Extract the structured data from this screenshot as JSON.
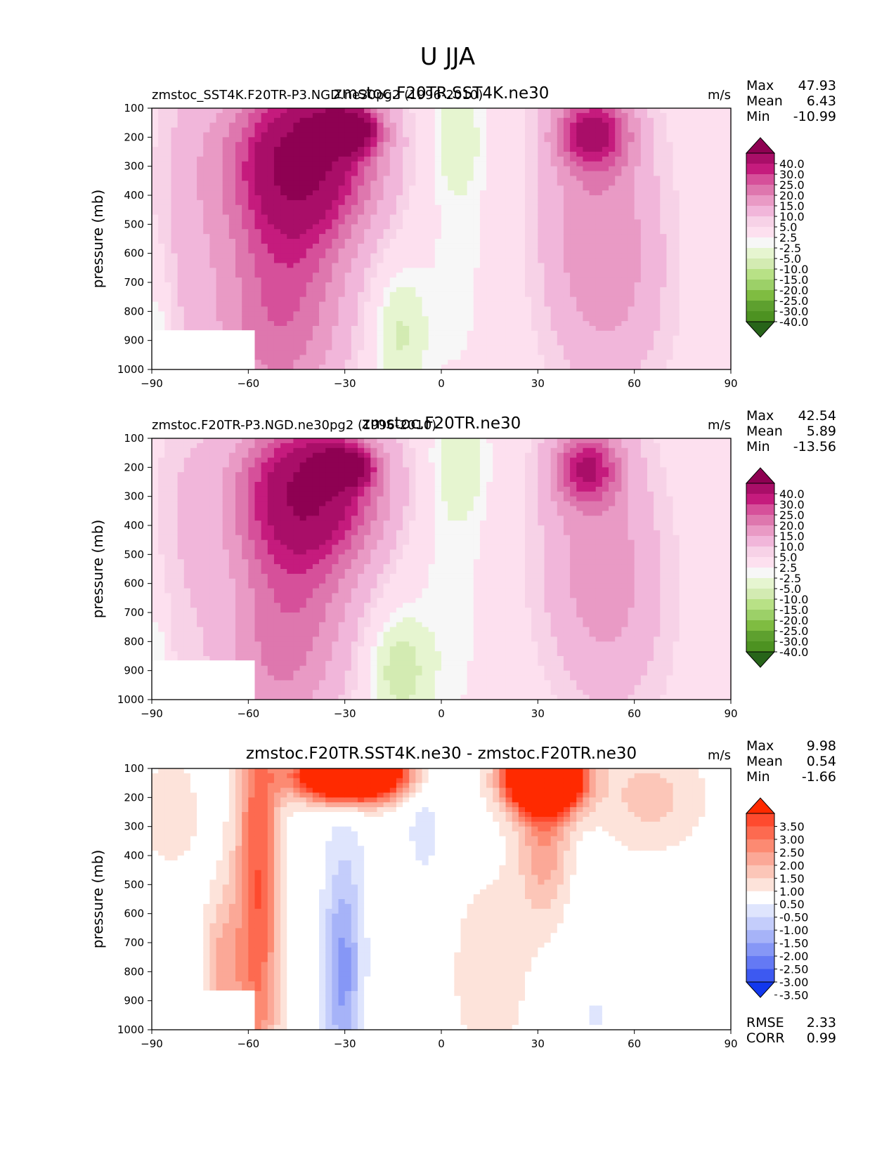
{
  "figure_title": "U JJA",
  "chart_data": [
    {
      "type": "contour",
      "title": "zmstoc.F20TR.SST4K.ne30",
      "left_label": "zmstoc_SST4K.F20TR-P3.NGD.ne30pg2 (1996-2010)",
      "units": "m/s",
      "xlabel": "",
      "ylabel": "pressure (mb)",
      "xlim": [
        -90,
        90
      ],
      "ylim": [
        1000,
        100
      ],
      "xticks": [
        "−90",
        "−60",
        "−30",
        "0",
        "30",
        "60",
        "90"
      ],
      "yticks": [
        "100",
        "200",
        "300",
        "400",
        "500",
        "600",
        "700",
        "800",
        "900",
        "1000"
      ],
      "stats": [
        {
          "label": "Max",
          "value": "47.93"
        },
        {
          "label": "Mean",
          "value": "6.43"
        },
        {
          "label": "Min",
          "value": "-10.99"
        }
      ],
      "colorbar_labels": [
        "40.0",
        "30.0",
        "25.0",
        "20.0",
        "15.0",
        "10.0",
        "5.0",
        "2.5",
        "-2.5",
        "-5.0",
        "-10.0",
        "-15.0",
        "-20.0",
        "-25.0",
        "-30.0",
        "-40.0"
      ],
      "colorbar_colors": [
        "#8e0152",
        "#a90e68",
        "#c51b7d",
        "#d6509a",
        "#de77ae",
        "#e99ac5",
        "#f1b6da",
        "#f7d2e7",
        "#fde0ef",
        "#f7f7f7",
        "#e6f5d0",
        "#d3ebb2",
        "#b8e186",
        "#9cd068",
        "#7fbc41",
        "#5ea02f",
        "#4d9221",
        "#276419"
      ],
      "features": [
        {
          "lat": -30,
          "p": 175,
          "value": 47.9,
          "lat_width": 9,
          "p_width": 70
        },
        {
          "lat": -42,
          "p": 250,
          "value": 36,
          "lat_width": 22,
          "p_width": 260
        },
        {
          "lat": -48,
          "p": 550,
          "value": 19,
          "lat_width": 20,
          "p_width": 380
        },
        {
          "lat": -52,
          "p": 950,
          "value": 11,
          "lat_width": 20,
          "p_width": 300
        },
        {
          "lat": -78,
          "p": 400,
          "value": 5,
          "lat_width": 12,
          "p_width": 600
        },
        {
          "lat": 47,
          "p": 185,
          "value": 27,
          "lat_width": 11,
          "p_width": 120
        },
        {
          "lat": 48,
          "p": 450,
          "value": 12,
          "lat_width": 18,
          "p_width": 500
        },
        {
          "lat": 55,
          "p": 750,
          "value": 5,
          "lat_width": 18,
          "p_width": 400
        },
        {
          "lat": 5,
          "p": 200,
          "value": -7,
          "lat_width": 7,
          "p_width": 180
        },
        {
          "lat": -13,
          "p": 880,
          "value": -11,
          "lat_width": 8,
          "p_width": 200
        },
        {
          "lat": 5,
          "p": 550,
          "value": -3.5,
          "lat_width": 12,
          "p_width": 700
        },
        {
          "lat": -88,
          "p": 850,
          "value": -6,
          "lat_width": 3,
          "p_width": 200
        }
      ]
    },
    {
      "type": "contour",
      "title": "zmstoc.F20TR.ne30",
      "left_label": "zmstoc.F20TR-P3.NGD.ne30pg2 (1996-2010)",
      "units": "m/s",
      "xlabel": "",
      "ylabel": "pressure (mb)",
      "xlim": [
        -90,
        90
      ],
      "ylim": [
        1000,
        100
      ],
      "xticks": [
        "−90",
        "−60",
        "−30",
        "0",
        "30",
        "60",
        "90"
      ],
      "yticks": [
        "100",
        "200",
        "300",
        "400",
        "500",
        "600",
        "700",
        "800",
        "900",
        "1000"
      ],
      "stats": [
        {
          "label": "Max",
          "value": "42.54"
        },
        {
          "label": "Mean",
          "value": "5.89"
        },
        {
          "label": "Min",
          "value": "-13.56"
        }
      ],
      "colorbar_labels": [
        "40.0",
        "30.0",
        "25.0",
        "20.0",
        "15.0",
        "10.0",
        "5.0",
        "2.5",
        "-2.5",
        "-5.0",
        "-10.0",
        "-15.0",
        "-20.0",
        "-25.0",
        "-30.0",
        "-40.0"
      ],
      "colorbar_colors": [
        "#8e0152",
        "#a90e68",
        "#c51b7d",
        "#d6509a",
        "#de77ae",
        "#e99ac5",
        "#f1b6da",
        "#f7d2e7",
        "#fde0ef",
        "#f7f7f7",
        "#e6f5d0",
        "#d3ebb2",
        "#b8e186",
        "#9cd068",
        "#7fbc41",
        "#5ea02f",
        "#4d9221",
        "#276419"
      ],
      "features": [
        {
          "lat": -31,
          "p": 200,
          "value": 42.5,
          "lat_width": 8,
          "p_width": 60
        },
        {
          "lat": -40,
          "p": 260,
          "value": 33,
          "lat_width": 22,
          "p_width": 240
        },
        {
          "lat": -46,
          "p": 550,
          "value": 18,
          "lat_width": 20,
          "p_width": 380
        },
        {
          "lat": -52,
          "p": 950,
          "value": 9,
          "lat_width": 18,
          "p_width": 280
        },
        {
          "lat": -80,
          "p": 400,
          "value": 4,
          "lat_width": 10,
          "p_width": 600
        },
        {
          "lat": 45,
          "p": 200,
          "value": 24,
          "lat_width": 10,
          "p_width": 120
        },
        {
          "lat": 48,
          "p": 450,
          "value": 11,
          "lat_width": 18,
          "p_width": 450
        },
        {
          "lat": 55,
          "p": 750,
          "value": 4.5,
          "lat_width": 18,
          "p_width": 400
        },
        {
          "lat": 6,
          "p": 180,
          "value": -7,
          "lat_width": 8,
          "p_width": 180
        },
        {
          "lat": -13,
          "p": 900,
          "value": -13.6,
          "lat_width": 9,
          "p_width": 180
        },
        {
          "lat": 3,
          "p": 550,
          "value": -4,
          "lat_width": 12,
          "p_width": 700
        },
        {
          "lat": -88,
          "p": 850,
          "value": -6,
          "lat_width": 3,
          "p_width": 200
        }
      ]
    },
    {
      "type": "contour",
      "title": "zmstoc.F20TR.SST4K.ne30 - zmstoc.F20TR.ne30",
      "left_label": "",
      "units": "m/s",
      "xlabel": "",
      "ylabel": "pressure (mb)",
      "xlim": [
        -90,
        90
      ],
      "ylim": [
        1000,
        100
      ],
      "xticks": [
        "−90",
        "−60",
        "−30",
        "0",
        "30",
        "60",
        "90"
      ],
      "yticks": [
        "100",
        "200",
        "300",
        "400",
        "500",
        "600",
        "700",
        "800",
        "900",
        "1000"
      ],
      "stats": [
        {
          "label": "Max",
          "value": "9.98"
        },
        {
          "label": "Mean",
          "value": "0.54"
        },
        {
          "label": "Min",
          "value": "-1.66"
        }
      ],
      "extra_stats": [
        {
          "label": "RMSE",
          "value": "2.33"
        },
        {
          "label": "CORR",
          "value": "0.99"
        }
      ],
      "colorbar_labels": [
        "3.50",
        "3.00",
        "2.50",
        "2.00",
        "1.50",
        "1.00",
        "0.50",
        "-0.50",
        "-1.00",
        "-1.50",
        "-2.00",
        "-2.50",
        "-3.00",
        "-3.50"
      ],
      "colorbar_colors": [
        "#ff2a00",
        "#fe4a2e",
        "#fd6a50",
        "#fc8a72",
        "#fba897",
        "#fcc6b8",
        "#fde3da",
        "#ffffff",
        "#dfe5fd",
        "#c4cdfb",
        "#a6b3f8",
        "#8697f6",
        "#6479f4",
        "#3d59f1",
        "#1238ee"
      ],
      "features": [
        {
          "lat": -28,
          "p": 120,
          "value": 9,
          "lat_width": 16,
          "p_width": 90
        },
        {
          "lat": 32,
          "p": 130,
          "value": 9.98,
          "lat_width": 11,
          "p_width": 110
        },
        {
          "lat": -57,
          "p": 500,
          "value": 3,
          "lat_width": 7,
          "p_width": 800
        },
        {
          "lat": -68,
          "p": 800,
          "value": 1.6,
          "lat_width": 6,
          "p_width": 300
        },
        {
          "lat": 32,
          "p": 350,
          "value": 1.8,
          "lat_width": 8,
          "p_width": 250
        },
        {
          "lat": -84,
          "p": 250,
          "value": 0.9,
          "lat_width": 10,
          "p_width": 220
        },
        {
          "lat": 65,
          "p": 200,
          "value": 1.2,
          "lat_width": 18,
          "p_width": 200
        },
        {
          "lat": 15,
          "p": 800,
          "value": 0.7,
          "lat_width": 18,
          "p_width": 500
        },
        {
          "lat": -31,
          "p": 850,
          "value": -1.66,
          "lat_width": 6,
          "p_width": 300
        },
        {
          "lat": -30,
          "p": 550,
          "value": -0.9,
          "lat_width": 7,
          "p_width": 450
        },
        {
          "lat": -5,
          "p": 300,
          "value": -0.8,
          "lat_width": 7,
          "p_width": 250
        },
        {
          "lat": 48,
          "p": 950,
          "value": -0.7,
          "lat_width": 3,
          "p_width": 80
        }
      ]
    }
  ]
}
